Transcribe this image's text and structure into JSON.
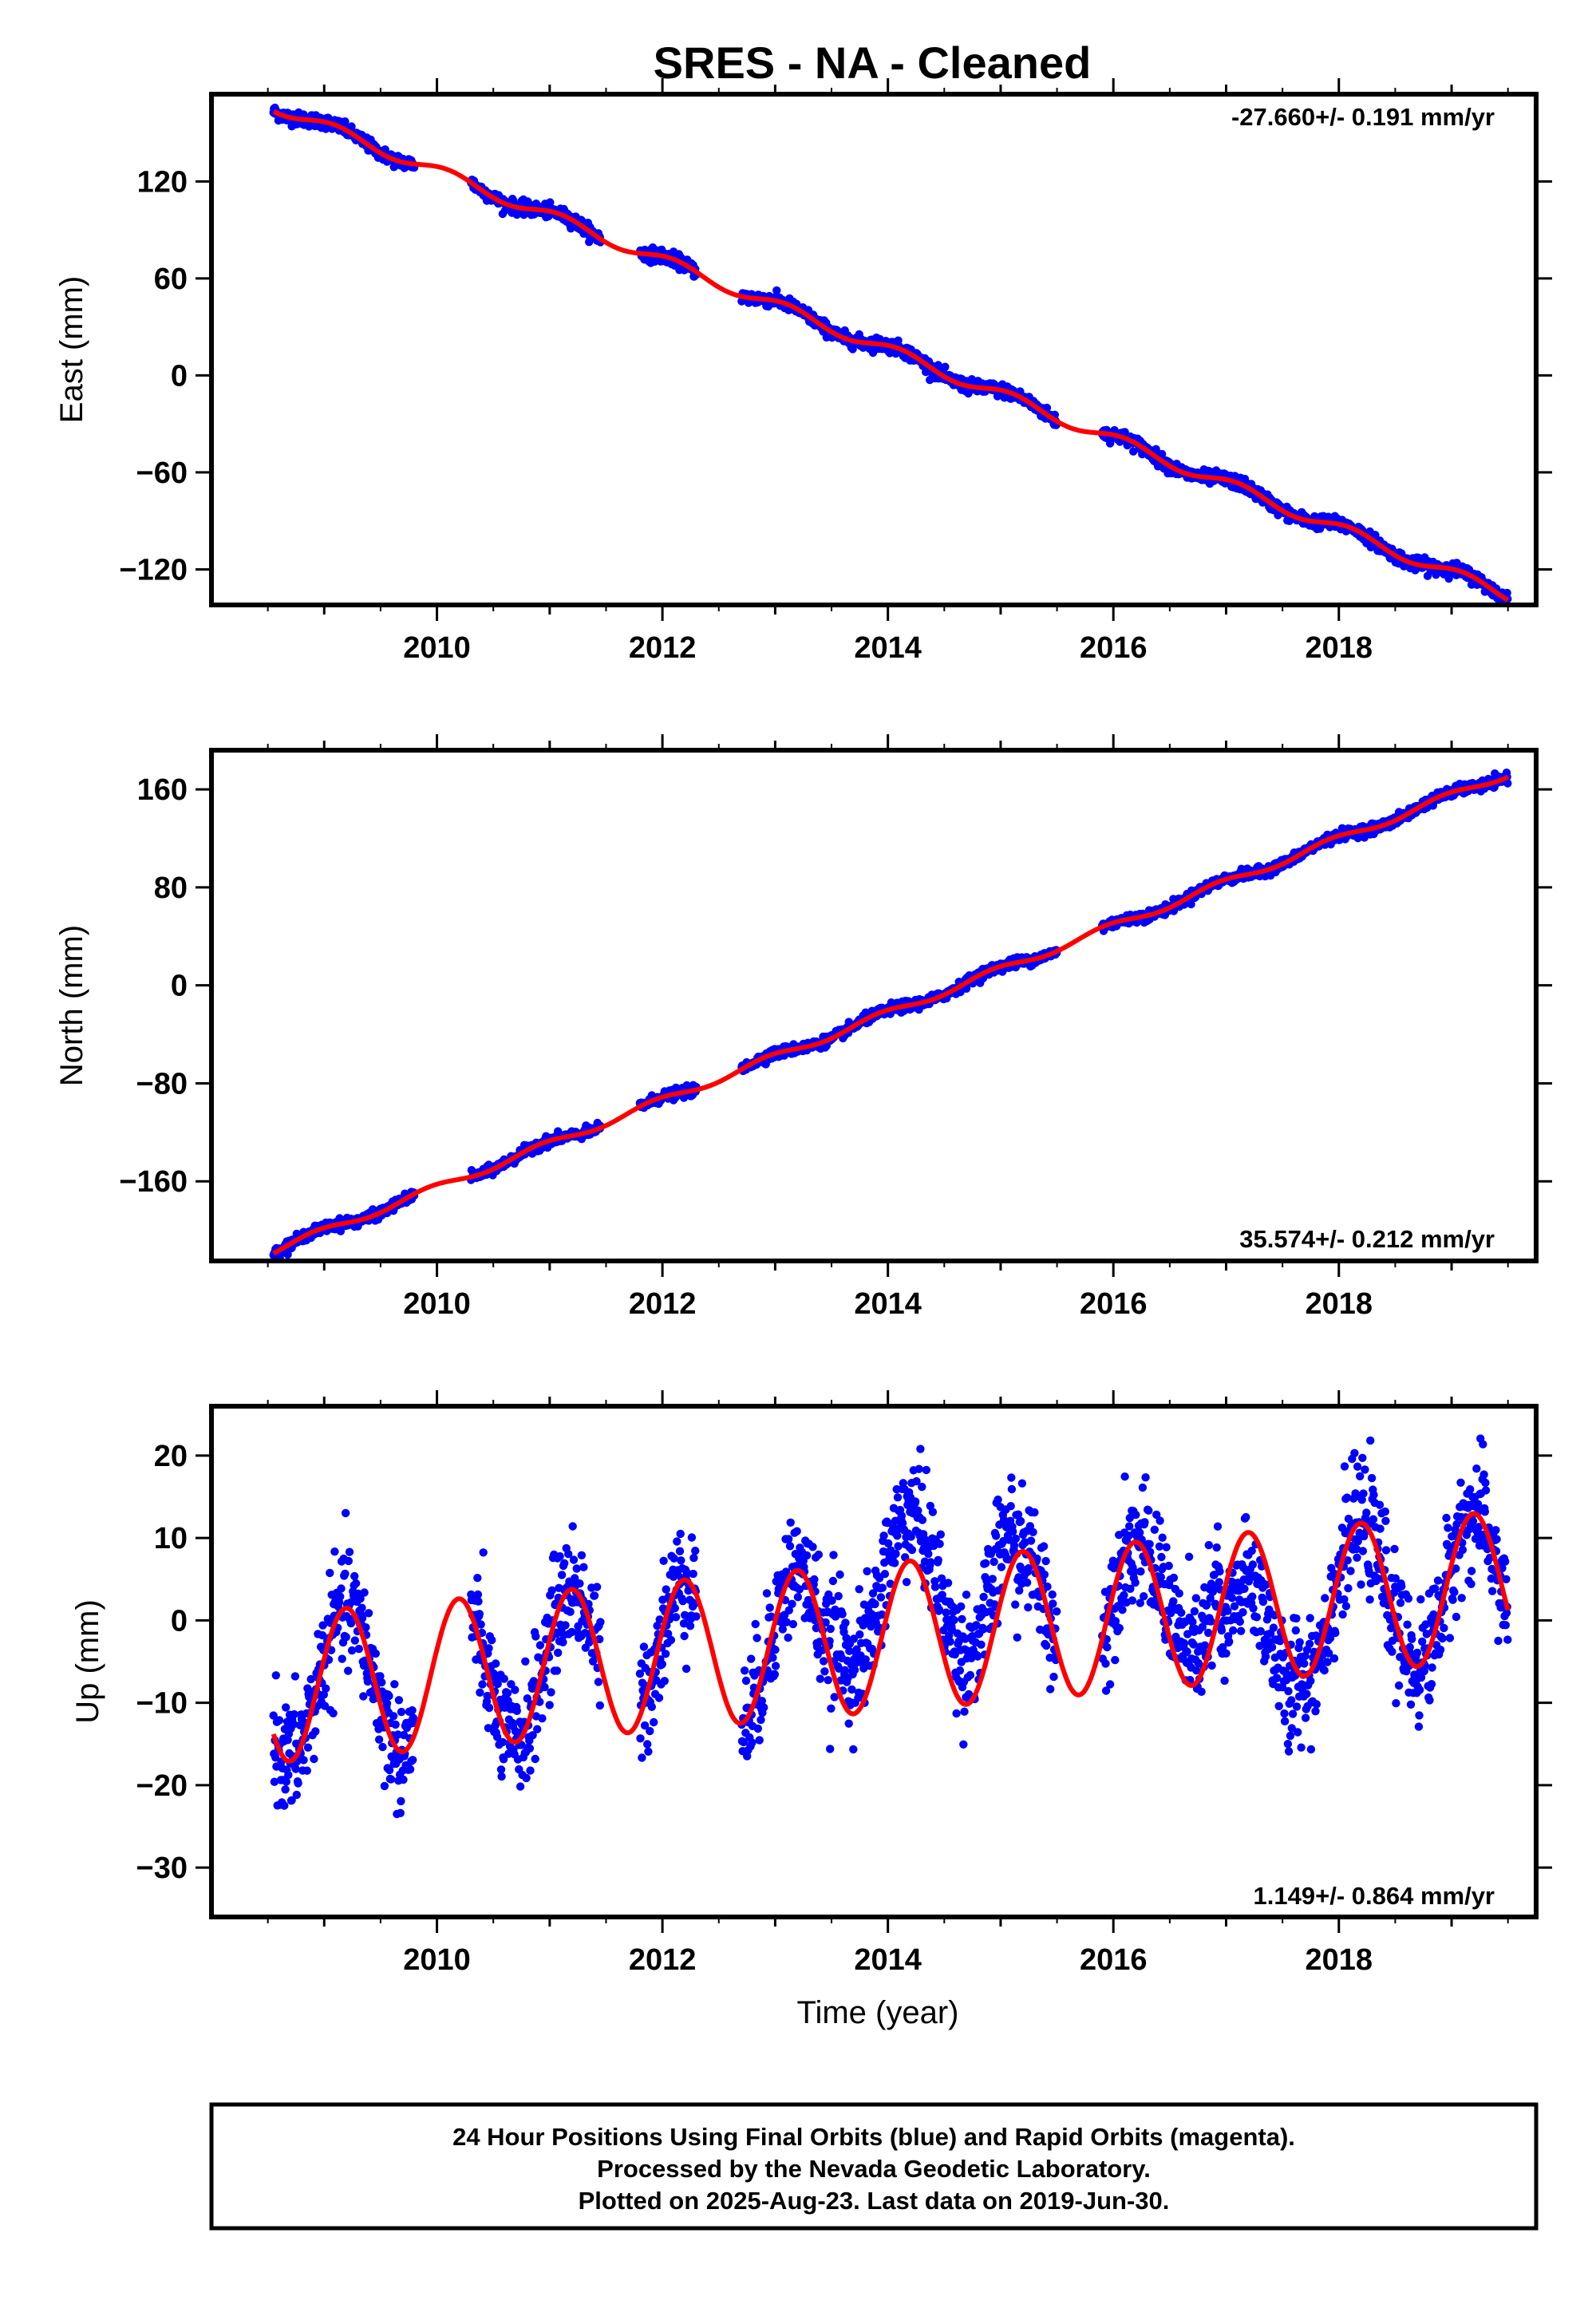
{
  "figure": {
    "title": "SRES  - NA - Cleaned",
    "footer_lines": [
      "24 Hour Positions Using Final Orbits (blue) and Rapid Orbits (magenta).",
      "Processed by the Nevada Geodetic Laboratory.",
      "Plotted on 2025-Aug-23. Last data on 2019-Jun-30."
    ]
  },
  "colors": {
    "data_points": "#0000ff",
    "model_curve": "#ff0000",
    "frame": "#000000"
  },
  "chart_data": [
    {
      "type": "scatter",
      "id": "east",
      "ylabel": "East (mm)",
      "xlabel": "",
      "rate_label": "-27.660+/- 0.191 mm/yr",
      "rate_position": "top-right",
      "xlim": [
        2008.0,
        2019.75
      ],
      "ylim": [
        -142,
        174
      ],
      "xticks": [
        2010,
        2012,
        2014,
        2016,
        2018
      ],
      "yticks": [
        -120,
        -60,
        0,
        60,
        120
      ],
      "x_start": 2008.55,
      "x_end": 2019.5,
      "gaps": [
        [
          2009.8,
          2010.3
        ],
        [
          2011.45,
          2011.8
        ],
        [
          2012.3,
          2012.7
        ],
        [
          2015.5,
          2015.9
        ]
      ],
      "trend": {
        "slope": -27.66,
        "ref_year": 2014.5,
        "ref_value": 2.0
      },
      "annual_amplitude": 3.5,
      "annual_phase": 0.9,
      "noise": 2.0
    },
    {
      "type": "scatter",
      "id": "north",
      "ylabel": "North (mm)",
      "xlabel": "",
      "rate_label": "35.574+/- 0.212 mm/yr",
      "rate_position": "bottom-right",
      "xlim": [
        2008.0,
        2019.75
      ],
      "ylim": [
        -225,
        192
      ],
      "xticks": [
        2010,
        2012,
        2014,
        2016,
        2018
      ],
      "yticks": [
        -160,
        -80,
        0,
        80,
        160
      ],
      "x_start": 2008.55,
      "x_end": 2019.5,
      "gaps": [
        [
          2009.8,
          2010.3
        ],
        [
          2011.45,
          2011.8
        ],
        [
          2012.3,
          2012.7
        ],
        [
          2015.5,
          2015.9
        ]
      ],
      "trend": {
        "slope": 35.574,
        "ref_year": 2014.5,
        "ref_value": -5.0
      },
      "annual_amplitude": 3.0,
      "annual_phase": 2.0,
      "noise": 2.0
    },
    {
      "type": "scatter",
      "id": "up",
      "ylabel": "Up (mm)",
      "xlabel": "Time (year)",
      "rate_label": "1.149+/- 0.864 mm/yr",
      "rate_position": "bottom-right",
      "xlim": [
        2008.0,
        2019.75
      ],
      "ylim": [
        -36,
        26
      ],
      "xticks": [
        2010,
        2012,
        2014,
        2016,
        2018
      ],
      "yticks": [
        -30,
        -20,
        -10,
        0,
        10,
        20
      ],
      "x_start": 2008.55,
      "x_end": 2019.5,
      "gaps": [
        [
          2009.8,
          2010.3
        ],
        [
          2011.45,
          2011.8
        ],
        [
          2012.3,
          2012.7
        ],
        [
          2015.5,
          2015.9
        ]
      ],
      "trend": {
        "slope": 1.149,
        "ref_year": 2014.0,
        "ref_value": -2.0
      },
      "annual_amplitude": 9.0,
      "annual_phase": 0.35,
      "noise": 3.5,
      "offsets": [
        [
          2013.5,
          2015.1,
          6.0
        ],
        [
          2016.4,
          2016.95,
          4.0
        ],
        [
          2016.95,
          2017.6,
          -6.0
        ]
      ]
    }
  ]
}
